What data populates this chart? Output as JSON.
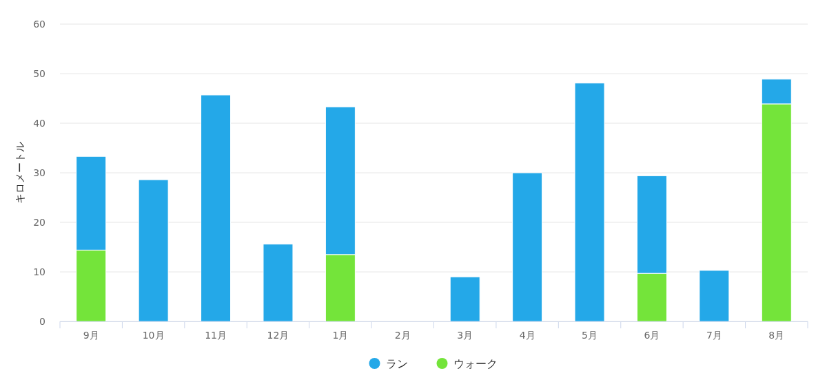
{
  "chart_data": {
    "type": "bar",
    "stacked": true,
    "ylabel": "キロメートル",
    "categories": [
      "9月",
      "10月",
      "11月",
      "12月",
      "1月",
      "2月",
      "3月",
      "4月",
      "5月",
      "6月",
      "7月",
      "8月"
    ],
    "series": [
      {
        "name": "ウォーク",
        "color": "#74e43a",
        "values": [
          14.4,
          null,
          null,
          null,
          13.5,
          null,
          null,
          null,
          null,
          9.7,
          null,
          43.9
        ]
      },
      {
        "name": "ラン",
        "color": "#24a8e8",
        "values": [
          18.9,
          28.6,
          45.7,
          15.6,
          29.8,
          0,
          9.0,
          30.0,
          48.1,
          19.7,
          10.3,
          5.0
        ]
      }
    ],
    "ylim": [
      0,
      60
    ],
    "yticks": [
      0,
      10,
      20,
      30,
      40,
      50,
      60
    ],
    "grid": "y",
    "legend": "bottom"
  }
}
